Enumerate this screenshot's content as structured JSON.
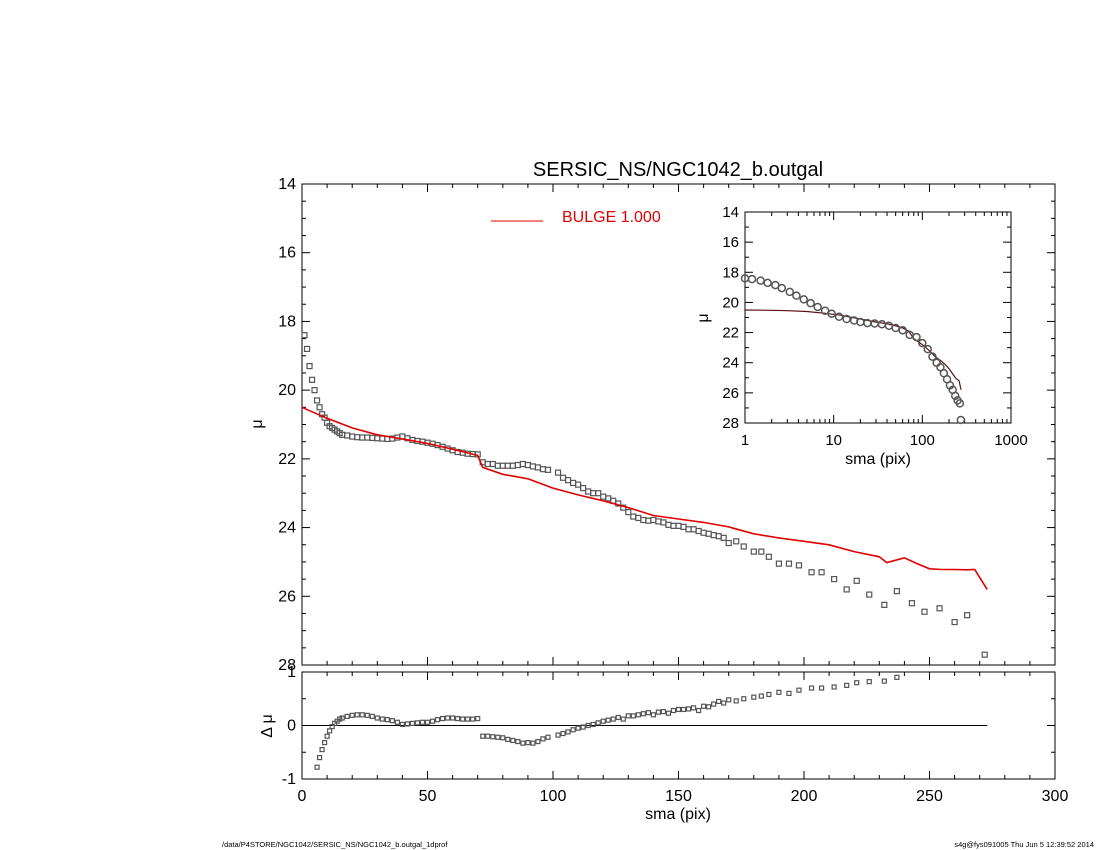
{
  "title": "SERSIC_NS/NGC1042_b.outgal",
  "footer": {
    "path": "/data/P4STORE/NGC1042/SERSIC_NS/NGC1042_b.outgal_1dprof",
    "host_time": "s4g@fys091005  Thu Jun  5 12:39:52 2014"
  },
  "colors": {
    "model": "#e00000",
    "data": "#555555",
    "axes": "#000000",
    "inset_model": "#5a1010"
  },
  "chart_data": [
    {
      "type": "scatter",
      "panel": "main",
      "title": "SERSIC_NS/NGC1042_b.outgal",
      "xlabel": "",
      "ylabel": "μ",
      "xlim": [
        0,
        300
      ],
      "ylim": [
        28,
        14
      ],
      "y_inverted": true,
      "xticks": [
        "0",
        "50",
        "100",
        "150",
        "200",
        "250",
        "300"
      ],
      "yticks": [
        "14",
        "16",
        "18",
        "20",
        "22",
        "24",
        "26",
        "28"
      ],
      "legend": {
        "position": "top-center",
        "label": "BULGE  1.000"
      },
      "series": [
        {
          "name": "data",
          "style": "squares",
          "x": [
            1,
            2,
            3,
            4,
            5,
            6,
            7,
            8,
            9,
            10,
            11,
            12,
            13,
            14,
            15,
            16,
            18,
            20,
            22,
            24,
            26,
            28,
            30,
            32,
            34,
            36,
            38,
            40,
            42,
            44,
            46,
            48,
            50,
            52,
            54,
            56,
            58,
            60,
            62,
            64,
            66,
            68,
            70,
            72,
            74,
            76,
            78,
            80,
            82,
            84,
            86,
            88,
            90,
            92,
            94,
            96,
            98,
            102,
            104,
            106,
            108,
            110,
            112,
            114,
            116,
            118,
            120,
            122,
            124,
            126,
            128,
            130,
            132,
            134,
            136,
            138,
            140,
            142,
            144,
            146,
            148,
            150,
            152,
            154,
            156,
            158,
            160,
            162,
            164,
            166,
            168,
            170,
            173,
            176,
            180,
            183,
            186,
            190,
            194,
            198,
            203,
            207,
            212,
            217,
            221,
            226,
            232,
            237,
            243,
            248,
            254,
            260,
            265,
            272
          ],
          "y": [
            18.4,
            18.8,
            19.3,
            19.7,
            20.0,
            20.3,
            20.5,
            20.7,
            20.8,
            20.95,
            21.05,
            21.1,
            21.15,
            21.2,
            21.25,
            21.3,
            21.32,
            21.35,
            21.37,
            21.38,
            21.38,
            21.39,
            21.4,
            21.41,
            21.42,
            21.41,
            21.38,
            21.35,
            21.4,
            21.45,
            21.48,
            21.5,
            21.53,
            21.56,
            21.6,
            21.65,
            21.7,
            21.75,
            21.8,
            21.82,
            21.85,
            21.86,
            21.87,
            22.1,
            22.15,
            22.15,
            22.2,
            22.2,
            22.2,
            22.2,
            22.18,
            22.15,
            22.18,
            22.22,
            22.25,
            22.3,
            22.32,
            22.4,
            22.55,
            22.62,
            22.7,
            22.75,
            22.85,
            22.95,
            23.0,
            23.0,
            23.1,
            23.15,
            23.22,
            23.3,
            23.42,
            23.55,
            23.68,
            23.72,
            23.78,
            23.8,
            23.78,
            23.82,
            23.85,
            23.92,
            23.95,
            23.95,
            23.98,
            24.05,
            24.05,
            24.1,
            24.15,
            24.18,
            24.22,
            24.25,
            24.3,
            24.45,
            24.4,
            24.55,
            24.7,
            24.7,
            24.85,
            25.05,
            25.05,
            25.1,
            25.3,
            25.3,
            25.5,
            25.8,
            25.55,
            25.95,
            26.25,
            25.85,
            26.2,
            26.45,
            26.35,
            26.75,
            26.55,
            27.7
          ]
        },
        {
          "name": "BULGE  1.000",
          "style": "line",
          "x": [
            0,
            10,
            20,
            30,
            40,
            50,
            60,
            70,
            72,
            80,
            90,
            100,
            110,
            120,
            130,
            140,
            150,
            160,
            170,
            172,
            180,
            190,
            200,
            210,
            220,
            230,
            233,
            240,
            245,
            250,
            255,
            260,
            265,
            268,
            273
          ],
          "y": [
            20.5,
            20.82,
            21.1,
            21.3,
            21.42,
            21.55,
            21.72,
            21.9,
            22.25,
            22.45,
            22.58,
            22.85,
            23.05,
            23.22,
            23.42,
            23.65,
            23.75,
            23.85,
            23.98,
            24.02,
            24.18,
            24.3,
            24.4,
            24.5,
            24.7,
            24.85,
            25.02,
            24.88,
            25.05,
            25.2,
            25.22,
            25.22,
            25.23,
            25.22,
            25.8
          ]
        }
      ]
    },
    {
      "type": "scatter",
      "panel": "residual",
      "xlabel": "sma (pix)",
      "ylabel": "Δ μ",
      "xlim": [
        0,
        300
      ],
      "ylim": [
        -1,
        1
      ],
      "xticks": [
        "0",
        "50",
        "100",
        "150",
        "200",
        "250",
        "300"
      ],
      "yticks": [
        "-1",
        "0",
        "1"
      ],
      "series": [
        {
          "name": "residual",
          "style": "squares",
          "x": [
            5,
            6,
            7,
            8,
            9,
            10,
            11,
            12,
            13,
            14,
            15,
            16,
            18,
            20,
            22,
            24,
            26,
            28,
            30,
            32,
            34,
            36,
            38,
            40,
            42,
            44,
            46,
            48,
            50,
            52,
            54,
            56,
            58,
            60,
            62,
            64,
            66,
            68,
            70,
            72,
            74,
            76,
            78,
            80,
            82,
            84,
            86,
            88,
            90,
            92,
            94,
            96,
            98,
            102,
            104,
            106,
            108,
            110,
            112,
            114,
            116,
            118,
            120,
            122,
            124,
            126,
            128,
            130,
            132,
            134,
            136,
            138,
            140,
            142,
            144,
            146,
            148,
            150,
            152,
            154,
            156,
            158,
            160,
            162,
            164,
            166,
            168,
            170,
            173,
            176,
            180,
            183,
            186,
            190,
            194,
            198,
            203,
            207,
            212,
            217,
            221,
            226,
            232,
            237
          ],
          "y": [
            -1.05,
            -0.78,
            -0.6,
            -0.45,
            -0.32,
            -0.2,
            -0.1,
            -0.02,
            0.04,
            0.08,
            0.12,
            0.14,
            0.17,
            0.19,
            0.2,
            0.2,
            0.19,
            0.17,
            0.14,
            0.12,
            0.11,
            0.09,
            0.06,
            0.02,
            0.03,
            0.04,
            0.05,
            0.06,
            0.06,
            0.08,
            0.11,
            0.13,
            0.14,
            0.14,
            0.13,
            0.12,
            0.12,
            0.12,
            0.13,
            -0.2,
            -0.2,
            -0.21,
            -0.22,
            -0.23,
            -0.26,
            -0.28,
            -0.3,
            -0.33,
            -0.32,
            -0.33,
            -0.3,
            -0.25,
            -0.22,
            -0.18,
            -0.15,
            -0.12,
            -0.08,
            -0.05,
            -0.03,
            0.0,
            0.02,
            0.05,
            0.08,
            0.1,
            0.12,
            0.15,
            0.12,
            0.18,
            0.18,
            0.2,
            0.22,
            0.24,
            0.2,
            0.25,
            0.26,
            0.23,
            0.28,
            0.3,
            0.3,
            0.31,
            0.33,
            0.28,
            0.36,
            0.35,
            0.4,
            0.45,
            0.42,
            0.48,
            0.46,
            0.5,
            0.53,
            0.55,
            0.58,
            0.62,
            0.6,
            0.66,
            0.7,
            0.7,
            0.72,
            0.75,
            0.8,
            0.82,
            0.83,
            0.9
          ]
        },
        {
          "name": "zero",
          "style": "line",
          "x": [
            0,
            273
          ],
          "y": [
            0,
            0
          ]
        }
      ]
    },
    {
      "type": "scatter",
      "panel": "inset",
      "xlabel": "sma (pix)",
      "ylabel": "μ",
      "xscale": "log",
      "xlim": [
        1,
        1000
      ],
      "ylim": [
        28,
        14
      ],
      "y_inverted": true,
      "xticks": [
        "1",
        "10",
        "100",
        "1000"
      ],
      "yticks": [
        "14",
        "16",
        "18",
        "20",
        "22",
        "24",
        "26",
        "28"
      ],
      "series": [
        {
          "name": "data",
          "style": "circles",
          "x": [
            1.0,
            1.2,
            1.5,
            1.8,
            2.2,
            2.6,
            3.2,
            3.8,
            4.6,
            5.5,
            6.6,
            8,
            9.5,
            11.5,
            14,
            17,
            20,
            24,
            29,
            35,
            42,
            50,
            60,
            72,
            86,
            100,
            115,
            130,
            145,
            160,
            175,
            190,
            205,
            220,
            235,
            250,
            265,
            272
          ],
          "y": [
            18.4,
            18.45,
            18.55,
            18.7,
            18.85,
            19.05,
            19.3,
            19.55,
            19.8,
            20.05,
            20.3,
            20.55,
            20.75,
            20.95,
            21.1,
            21.2,
            21.3,
            21.37,
            21.4,
            21.45,
            21.55,
            21.7,
            21.85,
            22.15,
            22.3,
            22.7,
            23.1,
            23.6,
            24.0,
            24.3,
            24.7,
            25.1,
            25.5,
            25.8,
            26.2,
            26.5,
            26.7,
            27.8
          ]
        },
        {
          "name": "model",
          "style": "line",
          "x": [
            1,
            2,
            3,
            5,
            8,
            12,
            20,
            30,
            40,
            50,
            60,
            70,
            80,
            100,
            120,
            140,
            160,
            180,
            200,
            220,
            240,
            260,
            273
          ],
          "y": [
            20.5,
            20.52,
            20.55,
            20.6,
            20.72,
            20.85,
            21.1,
            21.3,
            21.42,
            21.55,
            21.7,
            21.9,
            22.4,
            22.8,
            23.2,
            23.6,
            23.85,
            24.1,
            24.4,
            24.75,
            25.05,
            25.2,
            25.8
          ]
        }
      ]
    }
  ]
}
